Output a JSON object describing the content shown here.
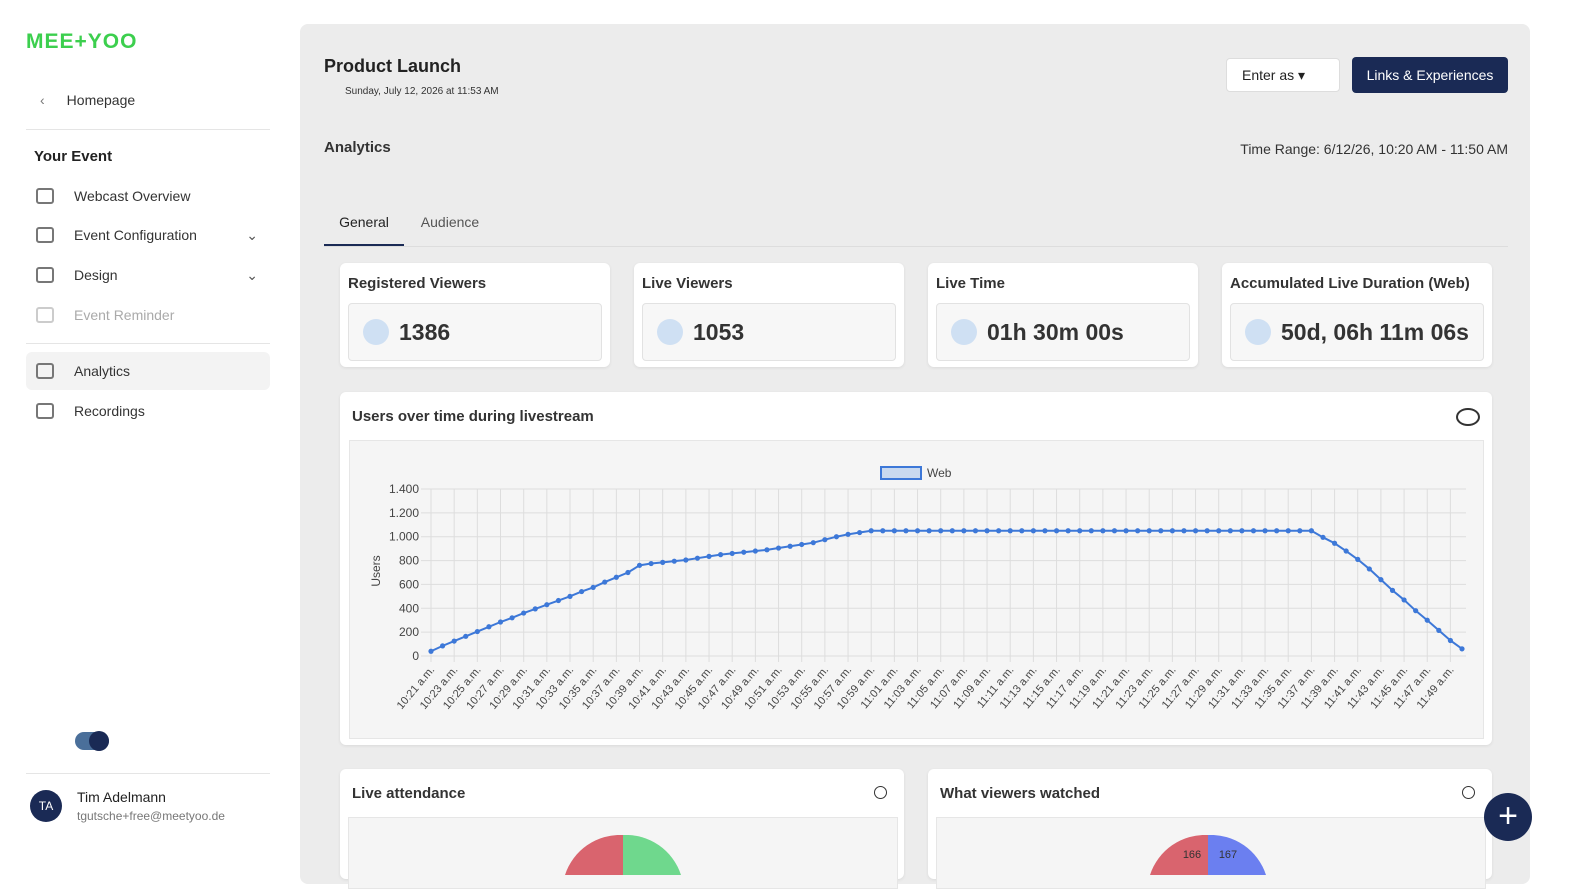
{
  "sidebar": {
    "logo": "MEE+YOO",
    "back": "Homepage",
    "section": "Your Event",
    "nav": [
      "Webcast Overview",
      "Event Configuration",
      "Design",
      "Event Reminder",
      "Analytics",
      "Recordings"
    ],
    "user": {
      "initials": "TA",
      "name": "Tim Adelmann",
      "email": "tgutsche+free@meetyoo.de"
    }
  },
  "header": {
    "title": "Product Launch",
    "date": "Sunday, July 12, 2026 at 11:53 AM",
    "enter_as": "Enter as",
    "links": "Links & Experiences",
    "section": "Analytics",
    "time_range": "Time Range: 6/12/26, 10:20 AM - 11:50 AM"
  },
  "tabs": [
    "General",
    "Audience"
  ],
  "stats": [
    {
      "label": "Registered Viewers",
      "value": "1386"
    },
    {
      "label": "Live Viewers",
      "value": "1053"
    },
    {
      "label": "Live Time",
      "value": "01h 30m 00s"
    },
    {
      "label": "Accumulated Live Duration (Web)",
      "value": "50d, 06h 11m 06s"
    }
  ],
  "chart_data": {
    "type": "line",
    "title": "Users over time during livestream",
    "y_label": "Users",
    "categories": [
      "10:21 a.m.",
      null,
      "10:23 a.m.",
      null,
      "10:25 a.m.",
      null,
      "10:27 a.m.",
      null,
      "10:29 a.m.",
      null,
      "10:31 a.m.",
      null,
      "10:33 a.m.",
      null,
      "10:35 a.m.",
      null,
      "10:37 a.m.",
      null,
      "10:39 a.m.",
      null,
      "10:41 a.m.",
      null,
      "10:43 a.m.",
      null,
      "10:45 a.m.",
      null,
      "10:47 a.m.",
      null,
      "10:49 a.m.",
      null,
      "10:51 a.m.",
      null,
      "10:53 a.m.",
      null,
      "10:55 a.m.",
      null,
      "10:57 a.m.",
      null,
      "10:59 a.m.",
      null,
      "11:01 a.m.",
      null,
      "11:03 a.m.",
      null,
      "11:05 a.m.",
      null,
      "11:07 a.m.",
      null,
      "11:09 a.m.",
      null,
      "11:11 a.m.",
      null,
      "11:13 a.m.",
      null,
      "11:15 a.m.",
      null,
      "11:17 a.m.",
      null,
      "11:19 a.m.",
      null,
      "11:21 a.m.",
      null,
      "11:23 a.m.",
      null,
      "11:25 a.m.",
      null,
      "11:27 a.m.",
      null,
      "11:29 a.m.",
      null,
      "11:31 a.m.",
      null,
      "11:33 a.m.",
      null,
      "11:35 a.m.",
      null,
      "11:37 a.m.",
      null,
      "11:39 a.m.",
      null,
      "11:41 a.m.",
      null,
      "11:43 a.m.",
      null,
      "11:45 a.m.",
      null,
      "11:47 a.m.",
      null,
      "11:49 a.m.",
      null
    ],
    "series": [
      {
        "name": "Web",
        "color": "#3d78d8",
        "values": [
          40,
          85,
          125,
          165,
          205,
          245,
          285,
          320,
          360,
          395,
          430,
          465,
          500,
          540,
          575,
          620,
          660,
          700,
          760,
          775,
          785,
          795,
          805,
          820,
          835,
          850,
          860,
          870,
          880,
          890,
          905,
          920,
          935,
          950,
          975,
          1000,
          1020,
          1035,
          1050,
          1050,
          1050,
          1050,
          1050,
          1050,
          1050,
          1050,
          1050,
          1050,
          1050,
          1050,
          1050,
          1050,
          1050,
          1050,
          1050,
          1050,
          1050,
          1050,
          1050,
          1050,
          1050,
          1050,
          1050,
          1050,
          1050,
          1050,
          1050,
          1050,
          1050,
          1050,
          1050,
          1050,
          1050,
          1050,
          1050,
          1050,
          1050,
          995,
          945,
          880,
          810,
          730,
          640,
          550,
          470,
          380,
          300,
          215,
          130,
          60
        ]
      }
    ],
    "ylim": [
      0,
      1400
    ],
    "yticks": [
      0,
      200,
      400,
      600,
      800,
      {
        "value": 1000,
        "label": "1.000"
      },
      {
        "value": 1200,
        "label": "1.200"
      },
      {
        "value": 1400,
        "label": "1.400"
      }
    ],
    "grid": true,
    "legend": "top"
  },
  "panels": [
    {
      "title": "Live attendance"
    },
    {
      "title": "What viewers watched",
      "labels": [
        "166",
        "167"
      ]
    }
  ]
}
